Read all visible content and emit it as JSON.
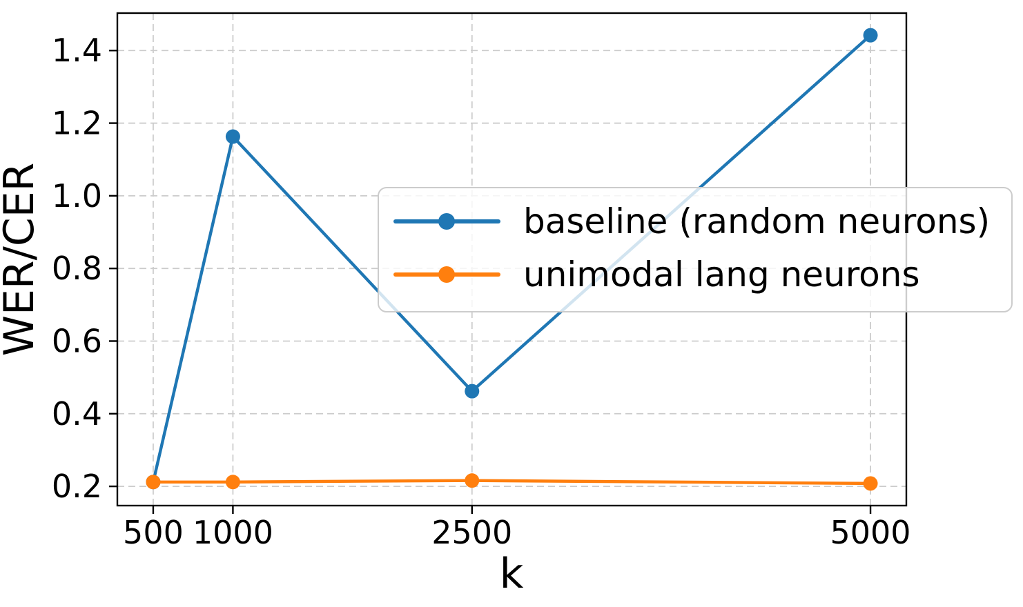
{
  "chart_data": {
    "type": "line",
    "title": "",
    "xlabel": "k",
    "ylabel": "WER/CER",
    "x": [
      500,
      1000,
      2500,
      5000
    ],
    "series": [
      {
        "name": "baseline (random neurons)",
        "color": "#1f77b4",
        "values": [
          0.212,
          1.163,
          0.462,
          1.442
        ]
      },
      {
        "name": "unimodal lang neurons",
        "color": "#ff7f0e",
        "values": [
          0.212,
          0.212,
          0.216,
          0.208
        ]
      }
    ],
    "xticks": {
      "values": [
        500,
        1000,
        2500,
        5000
      ],
      "labels": [
        "500",
        "1000",
        "2500",
        "5000"
      ]
    },
    "yticks": {
      "values": [
        0.2,
        0.4,
        0.6,
        0.8,
        1.0,
        1.2,
        1.4
      ],
      "labels": [
        "0.2",
        "0.4",
        "0.6",
        "0.8",
        "1.0",
        "1.2",
        "1.4"
      ]
    },
    "xlim": [
      275,
      5225
    ],
    "ylim": [
      0.147,
      1.503
    ],
    "grid": {
      "visible": true,
      "style": "dashed",
      "color": "#cccccc"
    },
    "legend": {
      "position": "center right inside plot, overflowing right spine",
      "entries": [
        "baseline (random neurons)",
        "unimodal lang neurons"
      ],
      "background": "#ffffff",
      "background_alpha": 0.8,
      "border_color": "#cccccc"
    },
    "colors": {
      "spine": "#000000",
      "text": "#000000",
      "background": "#ffffff"
    }
  }
}
